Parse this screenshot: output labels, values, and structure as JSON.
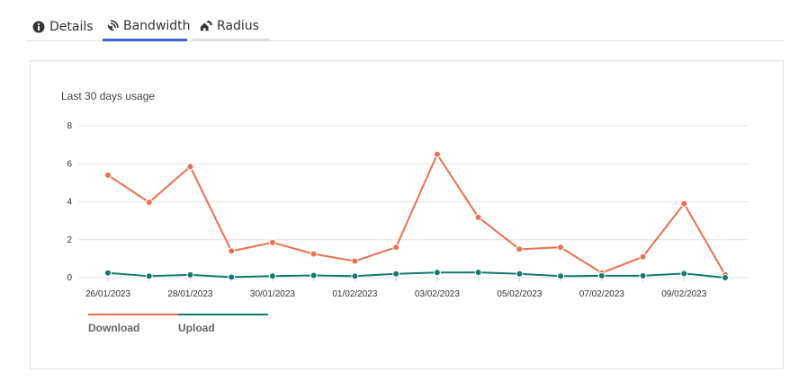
{
  "tabs": [
    {
      "label": "Details",
      "icon": "info-circle-icon",
      "active": false
    },
    {
      "label": "Bandwidth",
      "icon": "satellite-dish-icon",
      "active": true
    },
    {
      "label": "Radius",
      "icon": "broadcast-house-icon",
      "active": false
    }
  ],
  "colors": {
    "accent": "#3b62d1",
    "download": "#ef6f4d",
    "upload": "#127a70"
  },
  "chart_data": {
    "type": "line",
    "title": "Last 30 days usage",
    "x": [
      "26/01/2023",
      "27/01/2023",
      "28/01/2023",
      "29/01/2023",
      "30/01/2023",
      "31/01/2023",
      "01/02/2023",
      "02/02/2023",
      "03/02/2023",
      "04/02/2023",
      "05/02/2023",
      "06/02/2023",
      "07/02/2023",
      "08/02/2023",
      "09/02/2023",
      "10/02/2023"
    ],
    "tick_labels": [
      "26/01/2023",
      "28/01/2023",
      "30/01/2023",
      "01/02/2023",
      "03/02/2023",
      "05/02/2023",
      "07/02/2023",
      "09/02/2023"
    ],
    "y_ticks": [
      "0",
      "2",
      "4",
      "6",
      "8"
    ],
    "ylim": [
      0,
      8
    ],
    "grid": true,
    "legend_position": "bottom-left",
    "series": [
      {
        "name": "Download",
        "values": [
          5.4,
          3.97,
          5.85,
          1.4,
          1.85,
          1.25,
          0.87,
          1.6,
          6.5,
          3.18,
          1.5,
          1.6,
          0.25,
          1.1,
          3.9,
          0.15
        ]
      },
      {
        "name": "Upload",
        "values": [
          0.25,
          0.08,
          0.15,
          0.03,
          0.08,
          0.12,
          0.08,
          0.2,
          0.27,
          0.28,
          0.2,
          0.08,
          0.1,
          0.1,
          0.22,
          0.0
        ]
      }
    ]
  }
}
